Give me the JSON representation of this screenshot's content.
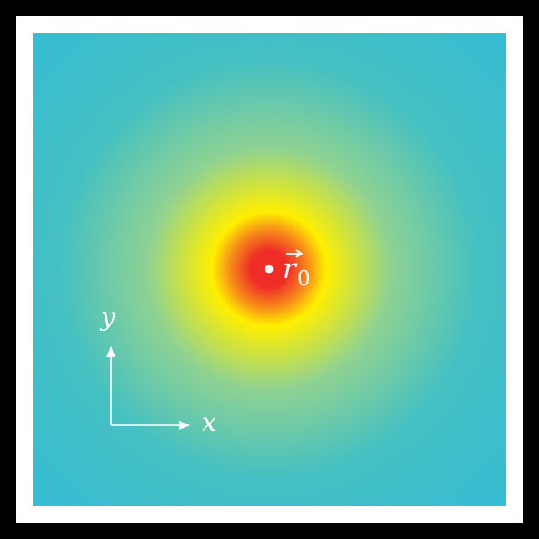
{
  "colors": {
    "outer_background": "#000000",
    "frame": "#ffffff",
    "field_edge": "#35bcd4",
    "field_mid": "#8fd292",
    "field_ring": "#ffef00",
    "field_core": "#ee2d28",
    "marker": "#ffffff",
    "axes": "#ffffff"
  },
  "labels": {
    "position_symbol": "r",
    "position_subscript": "0",
    "x_axis": "x",
    "y_axis": "y"
  }
}
